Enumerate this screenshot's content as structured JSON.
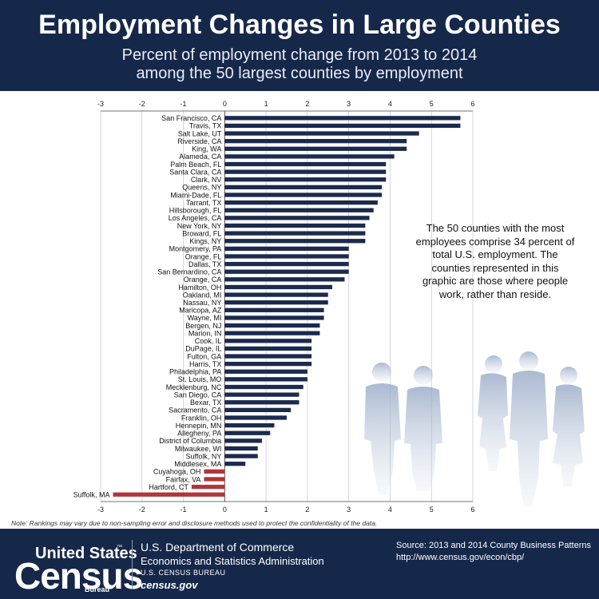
{
  "header": {
    "title": "Employment Changes in Large Counties",
    "subtitle_line1": "Percent of employment change from 2013 to 2014",
    "subtitle_line2": "among the 50 largest counties by employment"
  },
  "side_note": "The 50 counties with the most employees comprise 34 percent of total U.S. employment. The counties represented in this graphic are those where people work, rather than reside.",
  "note": "Note: Rankings may vary due to non-sampling error and disclosure methods used to protect the confidentiality of the data.",
  "footer": {
    "logo_line1": "United States",
    "logo_line2": "Census",
    "logo_line3": "Bureau",
    "logo_tm": "™",
    "dept_line1": "U.S. Department of Commerce",
    "dept_line2": "Economics and Statistics Administration",
    "dept_line3": "U.S. CENSUS BUREAU",
    "dept_line4": "census.gov",
    "source_line1": "Source: 2013 and 2014 County Business Patterns",
    "source_line2": "http://www.census.gov/econ/cbp/"
  },
  "colors": {
    "navy": "#16284a",
    "bar_positive": "#1b2a4d",
    "bar_negative": "#b3343a",
    "grid": "#c9ccd3"
  },
  "chart_data": {
    "type": "bar",
    "orientation": "horizontal",
    "xlim": [
      -3,
      6
    ],
    "xticks": [
      "-3",
      "-2",
      "-1",
      "0",
      "1",
      "2",
      "3",
      "4",
      "5",
      "6"
    ],
    "xtick_values": [
      -3,
      -2,
      -1,
      0,
      1,
      2,
      3,
      4,
      5,
      6
    ],
    "grid": true,
    "categories": [
      "San Francisco, CA",
      "Travis, TX",
      "Salt Lake, UT",
      "Riverside, CA",
      "King, WA",
      "Alameda, CA",
      "Palm Beach, FL",
      "Santa Clara, CA",
      "Clark, NV",
      "Queens, NY",
      "Miami-Dade, FL",
      "Tarrant, TX",
      "Hillsborough, FL",
      "Los Angeles, CA",
      "New York, NY",
      "Broward, FL",
      "Kings, NY",
      "Montgomery, PA",
      "Orange, FL",
      "Dallas, TX",
      "San Bernardino, CA",
      "Orange, CA",
      "Hamilton, OH",
      "Oakland, MI",
      "Nassau, NY",
      "Maricopa, AZ",
      "Wayne, MI",
      "Bergen, NJ",
      "Marion, IN",
      "Cook, IL",
      "DuPage, IL",
      "Fulton, GA",
      "Harris, TX",
      "Philadelphia, PA",
      "St. Louis, MO",
      "Mecklenburg, NC",
      "San Diego, CA",
      "Bexar, TX",
      "Sacramento, CA",
      "Franklin, OH",
      "Hennepin, MN",
      "Allegheny, PA",
      "District of Columbia",
      "Milwaukee, WI",
      "Suffolk, NY",
      "Middlesex, MA",
      "Cuyahoga, OH",
      "Fairfax, VA",
      "Hartford, CT",
      "Suffolk, MA"
    ],
    "values": [
      5.7,
      5.7,
      4.7,
      4.4,
      4.4,
      4.1,
      3.9,
      3.9,
      3.9,
      3.8,
      3.8,
      3.7,
      3.6,
      3.5,
      3.4,
      3.4,
      3.4,
      3.0,
      3.0,
      3.0,
      3.0,
      2.9,
      2.6,
      2.5,
      2.5,
      2.4,
      2.4,
      2.3,
      2.3,
      2.1,
      2.1,
      2.1,
      2.1,
      2.0,
      2.0,
      1.9,
      1.8,
      1.8,
      1.6,
      1.5,
      1.2,
      1.1,
      0.9,
      0.8,
      0.8,
      0.5,
      -0.5,
      -0.5,
      -0.8,
      -2.7
    ]
  }
}
